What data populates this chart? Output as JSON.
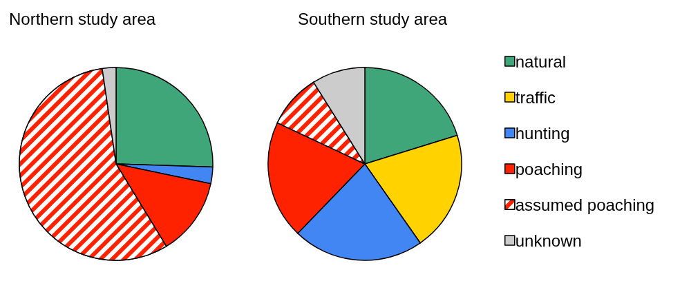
{
  "chart_data": {
    "type": "pie",
    "categories": [
      "natural",
      "traffic",
      "hunting",
      "poaching",
      "assumed poaching",
      "unknown"
    ],
    "legend": "right",
    "series": [
      {
        "name": "Northern study area",
        "values": [
          25.5,
          null,
          2.8,
          13,
          56.4,
          2.3
        ],
        "colors": [
          "#3fa67a",
          "#ffd200",
          "#4286f4",
          "#ff2200",
          "#ff2200",
          "#cccccc"
        ]
      },
      {
        "name": "Southern study area",
        "values": [
          20.2,
          20.1,
          21.9,
          19.8,
          9.1,
          8.9
        ],
        "colors": [
          "#3fa67a",
          "#ffd200",
          "#4286f4",
          "#ff2200",
          "#ff2200",
          "#cccccc"
        ]
      }
    ]
  }
}
